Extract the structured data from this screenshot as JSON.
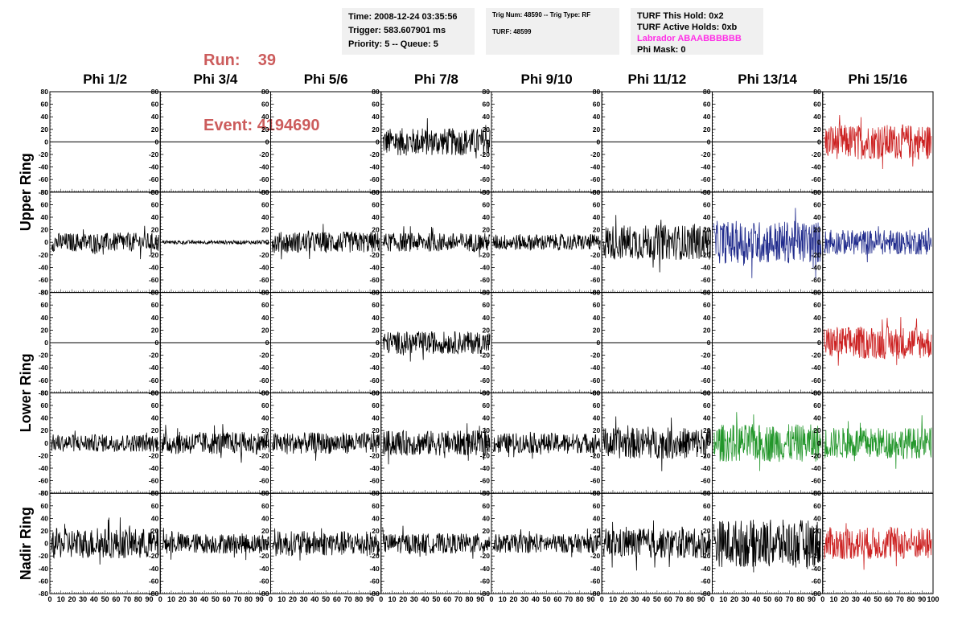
{
  "header": {
    "run_label": "Run:",
    "run_value": "39",
    "event_label": "Event:",
    "event_value": "4194690",
    "time": "Time: 2008-12-24 03:35:56",
    "trigger": "Trigger: 583.607901 ms",
    "priority": "Priority: 5 -- Queue: 5",
    "trig_num": "Trig Num: 48590 -- Trig Type: RF",
    "turf": "TURF: 48599",
    "turf_this_hold": "TURF This Hold: 0x2",
    "turf_active_holds": "TURF Active Holds: 0xb",
    "labrador": "Labrador ABAABBBBBB",
    "phi_mask": "Phi Mask: 0"
  },
  "colors": {
    "run_text": "#cc5c5c",
    "labrador_text": "#ff2ee6",
    "panel_bg": "#f0f0f0",
    "trace_default": "#000000",
    "trace_red": "#cc2222",
    "trace_blue": "#1f2a8c",
    "trace_green": "#22962a"
  },
  "chart_data": {
    "type": "line",
    "columns": [
      "Phi 1/2",
      "Phi 3/4",
      "Phi 5/6",
      "Phi 7/8",
      "Phi 9/10",
      "Phi 11/12",
      "Phi 13/14",
      "Phi 15/16"
    ],
    "ring_labels": [
      "Upper Ring",
      "Lower Ring",
      "Nadir Ring"
    ],
    "x_ticks": [
      "0",
      "10",
      "20",
      "30",
      "40",
      "50",
      "60",
      "70",
      "80",
      "90",
      "100"
    ],
    "y_ticks": [
      "80",
      "60",
      "40",
      "20",
      "0",
      "-20",
      "-40",
      "-60",
      "-80"
    ],
    "xlim": [
      0,
      100
    ],
    "ylim": [
      -80,
      80
    ],
    "grid": false,
    "rows": [
      {
        "amplitudes": [
          0,
          0,
          0,
          22,
          0,
          0,
          0,
          28
        ],
        "colors": [
          "default",
          "default",
          "default",
          "default",
          "default",
          "default",
          "default",
          "red"
        ]
      },
      {
        "amplitudes": [
          15,
          3,
          17,
          15,
          13,
          28,
          34,
          20
        ],
        "colors": [
          "default",
          "default",
          "default",
          "default",
          "default",
          "default",
          "blue",
          "blue"
        ]
      },
      {
        "amplitudes": [
          0,
          0,
          0,
          18,
          0,
          0,
          0,
          26
        ],
        "colors": [
          "default",
          "default",
          "default",
          "default",
          "default",
          "default",
          "default",
          "red"
        ]
      },
      {
        "amplitudes": [
          14,
          18,
          17,
          20,
          16,
          25,
          30,
          25
        ],
        "colors": [
          "default",
          "default",
          "default",
          "default",
          "default",
          "default",
          "green",
          "green"
        ]
      },
      {
        "amplitudes": [
          24,
          16,
          20,
          16,
          15,
          24,
          38,
          26
        ],
        "colors": [
          "default",
          "default",
          "default",
          "default",
          "default",
          "default",
          "default",
          "red"
        ]
      }
    ],
    "samples_per_trace": 260
  }
}
